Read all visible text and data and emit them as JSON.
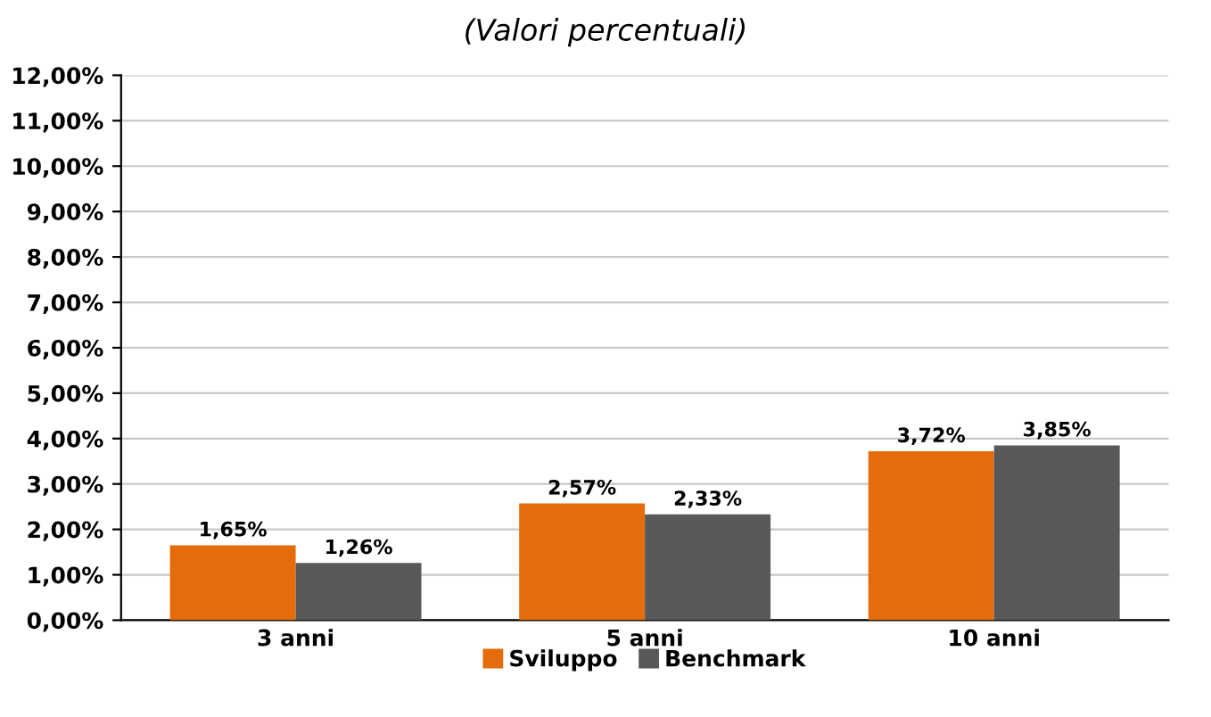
{
  "chart_data": {
    "type": "bar",
    "title": "(Valori percentuali)",
    "categories": [
      "3 anni",
      "5 anni",
      "10 anni"
    ],
    "series": [
      {
        "name": "Sviluppo",
        "color": "#e46c0a",
        "values": [
          1.65,
          2.57,
          3.72
        ],
        "value_labels": [
          "1,65%",
          "2,57%",
          "3,72%"
        ]
      },
      {
        "name": "Benchmark",
        "color": "#595959",
        "values": [
          1.26,
          2.33,
          3.85
        ],
        "value_labels": [
          "1,26%",
          "2,33%",
          "3,85%"
        ]
      }
    ],
    "ylim": [
      0,
      12
    ],
    "yticks": [
      {
        "value": 0,
        "label": "0,00%"
      },
      {
        "value": 1,
        "label": "1,00%"
      },
      {
        "value": 2,
        "label": "2,00%"
      },
      {
        "value": 3,
        "label": "3,00%"
      },
      {
        "value": 4,
        "label": "4,00%"
      },
      {
        "value": 5,
        "label": "5,00%"
      },
      {
        "value": 6,
        "label": "6,00%"
      },
      {
        "value": 7,
        "label": "7,00%"
      },
      {
        "value": 8,
        "label": "8,00%"
      },
      {
        "value": 9,
        "label": "9,00%"
      },
      {
        "value": 10,
        "label": "10,00%"
      },
      {
        "value": 11,
        "label": "11,00%"
      },
      {
        "value": 12,
        "label": "12,00%"
      }
    ],
    "grid": "y",
    "legend": "bottom"
  }
}
